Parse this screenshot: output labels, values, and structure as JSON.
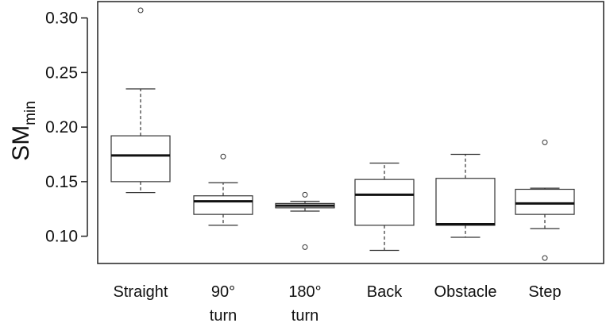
{
  "chart_data": {
    "type": "box",
    "title": "",
    "xlabel": "",
    "ylabel": "SM",
    "ylabel_subscript": "min",
    "ylim": [
      0.075,
      0.315
    ],
    "yticks": [
      "0.10",
      "0.15",
      "0.20",
      "0.25",
      "0.30"
    ],
    "ytick_values": [
      0.1,
      0.15,
      0.2,
      0.25,
      0.3
    ],
    "grid": false,
    "categories": [
      {
        "lines": [
          "Straight"
        ]
      },
      {
        "lines": [
          "90°",
          "turn"
        ]
      },
      {
        "lines": [
          "180°",
          "turn"
        ]
      },
      {
        "lines": [
          "Back"
        ]
      },
      {
        "lines": [
          "Obstacle"
        ]
      },
      {
        "lines": [
          "Step"
        ]
      }
    ],
    "boxes": [
      {
        "whisker_low": 0.14,
        "q1": 0.15,
        "median": 0.174,
        "q3": 0.192,
        "whisker_high": 0.235,
        "outliers": [
          0.307
        ]
      },
      {
        "whisker_low": 0.11,
        "q1": 0.12,
        "median": 0.132,
        "q3": 0.137,
        "whisker_high": 0.149,
        "outliers": [
          0.173
        ]
      },
      {
        "whisker_low": 0.123,
        "q1": 0.126,
        "median": 0.128,
        "q3": 0.13,
        "whisker_high": 0.132,
        "outliers": [
          0.138,
          0.09
        ]
      },
      {
        "whisker_low": 0.087,
        "q1": 0.11,
        "median": 0.138,
        "q3": 0.152,
        "whisker_high": 0.167,
        "outliers": []
      },
      {
        "whisker_low": 0.099,
        "q1": 0.11,
        "median": 0.111,
        "q3": 0.153,
        "whisker_high": 0.175,
        "outliers": []
      },
      {
        "whisker_low": 0.107,
        "q1": 0.12,
        "median": 0.13,
        "q3": 0.143,
        "whisker_high": 0.144,
        "outliers": [
          0.186,
          0.08
        ]
      }
    ]
  }
}
